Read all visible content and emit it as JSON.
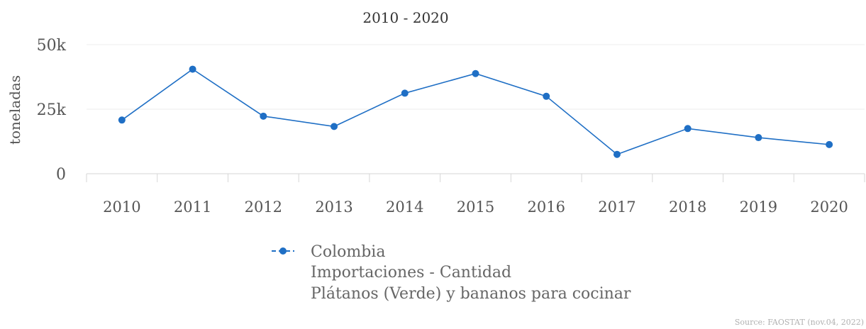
{
  "chart_data": {
    "type": "line",
    "title": "",
    "subtitle": "2010 - 2020",
    "xlabel": "",
    "ylabel": "toneladas",
    "categories": [
      "2010",
      "2011",
      "2012",
      "2013",
      "2014",
      "2015",
      "2016",
      "2017",
      "2018",
      "2019",
      "2020"
    ],
    "series": [
      {
        "name": "Colombia",
        "values": [
          20800,
          40500,
          22300,
          18300,
          31200,
          38800,
          30000,
          7500,
          17500,
          14000,
          11300
        ],
        "color": "#1f6fc5"
      }
    ],
    "ylim": [
      0,
      50000
    ],
    "yticks": [
      {
        "value": 0,
        "label": "0"
      },
      {
        "value": 25000,
        "label": "25k"
      },
      {
        "value": 50000,
        "label": "50k"
      }
    ],
    "grid": true,
    "legend": {
      "placement": "bottom",
      "lines": [
        "Colombia",
        "Importaciones - Cantidad",
        "Plátanos (Verde) y bananos para cocinar"
      ]
    },
    "source": "Source: FAOSTAT (nov.04, 2022)"
  }
}
